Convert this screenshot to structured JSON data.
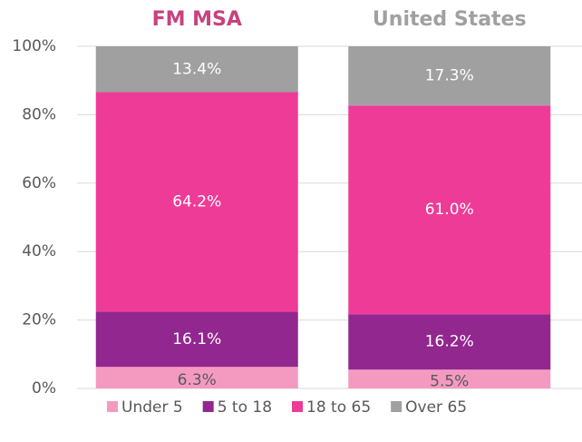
{
  "chart_data": {
    "type": "stacked_bar",
    "categories": [
      "FM MSA",
      "United States"
    ],
    "category_colors": [
      "#c7427f",
      "#a0a0a0"
    ],
    "series": [
      {
        "name": "Under 5",
        "color": "#f49ac1",
        "label_color": "#595959",
        "values": [
          6.3,
          5.5
        ],
        "value_labels": [
          "6.3%",
          "5.5%"
        ]
      },
      {
        "name": "5 to 18",
        "color": "#92278f",
        "label_color": "#ffffff",
        "values": [
          16.1,
          16.2
        ],
        "value_labels": [
          "16.1%",
          "16.2%"
        ]
      },
      {
        "name": "18 to 65",
        "color": "#ee3b97",
        "label_color": "#ffffff",
        "values": [
          64.2,
          61.0
        ],
        "value_labels": [
          "64.2%",
          "61.0%"
        ]
      },
      {
        "name": "Over 65",
        "color": "#a0a0a0",
        "label_color": "#ffffff",
        "values": [
          13.4,
          17.3
        ],
        "value_labels": [
          "13.4%",
          "17.3%"
        ]
      }
    ],
    "ylim": [
      0,
      100
    ],
    "yticks": [
      {
        "value": 0,
        "label": "0%"
      },
      {
        "value": 20,
        "label": "20%"
      },
      {
        "value": 40,
        "label": "40%"
      },
      {
        "value": 60,
        "label": "60%"
      },
      {
        "value": 80,
        "label": "80%"
      },
      {
        "value": 100,
        "label": "100%"
      }
    ],
    "grid": true,
    "legend": "bottom"
  }
}
